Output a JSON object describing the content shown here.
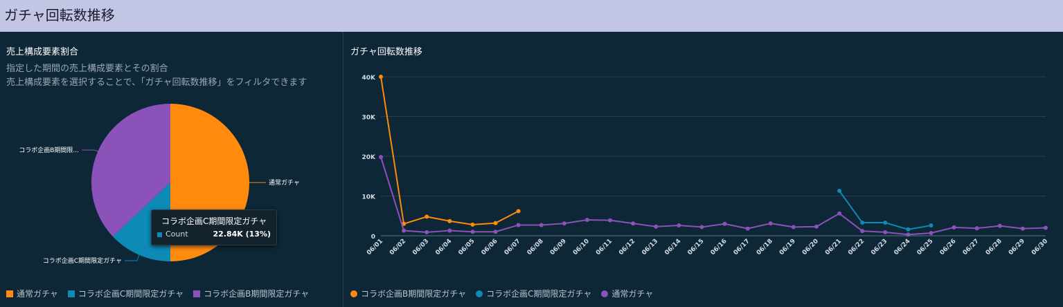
{
  "header": {
    "title": "ガチャ回転数推移"
  },
  "colors": {
    "orange": "#ff8a0d",
    "blue": "#0d8ab6",
    "purple": "#8b52b9"
  },
  "left": {
    "title": "売上構成要素割合",
    "desc1": "指定した期間の売上構成要素とその割合",
    "desc2": "売上構成要素を選択することで、「ガチャ回転数推移」をフィルタできます"
  },
  "right": {
    "title": "ガチャ回転数推移"
  },
  "tooltip": {
    "title": "コラボ企画C期間限定ガチャ",
    "label": "Count",
    "value": "22.84K (13%)"
  },
  "pie_legend": [
    "通常ガチャ",
    "コラボ企画C期間限定ガチャ",
    "コラボ企画B期間限定ガチャ"
  ],
  "line_legend": [
    "コラボ企画B期間限定ガチャ",
    "コラボ企画C期間限定ガチャ",
    "通常ガチャ"
  ],
  "chart_data": [
    {
      "type": "pie",
      "slices": [
        {
          "label": "通常ガチャ",
          "display_label": "通常ガチャ",
          "value": 50,
          "color": "#ff8a0d"
        },
        {
          "label": "コラボ企画C期間限定ガチャ",
          "display_label": "コラボ企画C期間限定ガチャ",
          "value": 13,
          "color": "#0d8ab6"
        },
        {
          "label": "コラボ企画B期間限定ガチャ",
          "display_label": "コラボ企画B期間限...",
          "value": 37,
          "color": "#8b52b9"
        }
      ]
    },
    {
      "type": "line",
      "ylim": [
        0,
        40000
      ],
      "yticks": [
        "0",
        "10K",
        "20K",
        "30K",
        "40K"
      ],
      "x": [
        "06/01",
        "06/02",
        "06/03",
        "06/04",
        "06/05",
        "06/06",
        "06/07",
        "06/08",
        "06/09",
        "06/10",
        "06/11",
        "06/12",
        "06/13",
        "06/14",
        "06/15",
        "06/16",
        "06/17",
        "06/18",
        "06/19",
        "06/20",
        "06/21",
        "06/22",
        "06/23",
        "06/24",
        "06/25",
        "06/26",
        "06/27",
        "06/28",
        "06/29",
        "06/30"
      ],
      "series": [
        {
          "name": "コラボ企画B期間限定ガチャ",
          "color": "#ff8a0d",
          "values": [
            40000,
            3000,
            4800,
            3700,
            2800,
            3200,
            6200,
            null,
            null,
            null,
            null,
            null,
            null,
            null,
            null,
            null,
            null,
            null,
            null,
            null,
            null,
            null,
            null,
            null,
            null,
            null,
            null,
            null,
            null,
            null
          ]
        },
        {
          "name": "コラボ企画C期間限定ガチャ",
          "color": "#0d8ab6",
          "values": [
            null,
            null,
            null,
            null,
            null,
            null,
            null,
            null,
            null,
            null,
            null,
            null,
            null,
            null,
            null,
            null,
            null,
            null,
            null,
            null,
            11300,
            3300,
            3300,
            1600,
            2600,
            null,
            null,
            null,
            null,
            null
          ]
        },
        {
          "name": "通常ガチャ",
          "color": "#8b52b9",
          "values": [
            19800,
            1300,
            900,
            1300,
            1000,
            1000,
            2700,
            2700,
            3100,
            4000,
            3900,
            3100,
            2300,
            2600,
            2200,
            3000,
            1800,
            3100,
            2200,
            2300,
            5600,
            1200,
            900,
            300,
            700,
            2100,
            1900,
            2500,
            1800,
            2000
          ]
        }
      ]
    }
  ]
}
